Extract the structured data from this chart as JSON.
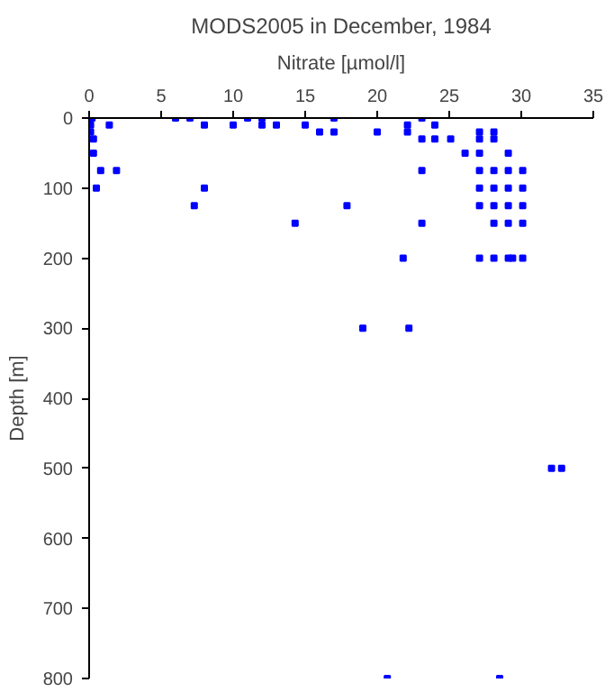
{
  "chart_data": {
    "type": "scatter",
    "title": "MODS2005 in December, 1984",
    "xlabel": "Nitrate [µmol/l]",
    "ylabel": "Depth [m]",
    "x": [
      0.2,
      6.0,
      7.0,
      11.0,
      12.0,
      17.0,
      23.1,
      0.1,
      1.4,
      8.0,
      10.0,
      12.0,
      13.0,
      15.0,
      22.1,
      24.0,
      0.1,
      16.0,
      17.0,
      20.0,
      22.1,
      27.1,
      28.1,
      0.3,
      23.1,
      24.0,
      25.1,
      27.1,
      28.1,
      0.3,
      26.1,
      27.1,
      29.1,
      0.8,
      1.9,
      23.1,
      27.1,
      28.1,
      29.1,
      30.1,
      0.5,
      8.0,
      27.1,
      28.1,
      29.1,
      30.1,
      7.3,
      17.9,
      27.1,
      28.1,
      29.1,
      30.1,
      14.3,
      23.1,
      28.1,
      29.1,
      30.1,
      21.8,
      27.1,
      28.1,
      29.1,
      29.4,
      30.1,
      19.0,
      22.2,
      32.1,
      32.8,
      20.7,
      28.5
    ],
    "series": [
      {
        "color": "#0000ff",
        "values": [
          0,
          0,
          0,
          0,
          0,
          0,
          0,
          10,
          10,
          10,
          10,
          10,
          10,
          10,
          10,
          10,
          20,
          20,
          20,
          20,
          20,
          20,
          20,
          30,
          30,
          30,
          30,
          30,
          30,
          50,
          50,
          50,
          50,
          75,
          75,
          75,
          75,
          75,
          75,
          75,
          100,
          100,
          100,
          100,
          100,
          100,
          125,
          125,
          125,
          125,
          125,
          125,
          150,
          150,
          150,
          150,
          150,
          200,
          200,
          200,
          200,
          200,
          200,
          300,
          300,
          500,
          500,
          800,
          800
        ]
      }
    ],
    "xlim": [
      0,
      35
    ],
    "xticks": [
      0,
      5,
      10,
      15,
      20,
      25,
      30,
      35
    ],
    "ylim": [
      800,
      0
    ],
    "yticks": [
      0,
      100,
      200,
      300,
      400,
      500,
      600,
      700,
      800
    ],
    "marker": "square",
    "grid": false
  }
}
